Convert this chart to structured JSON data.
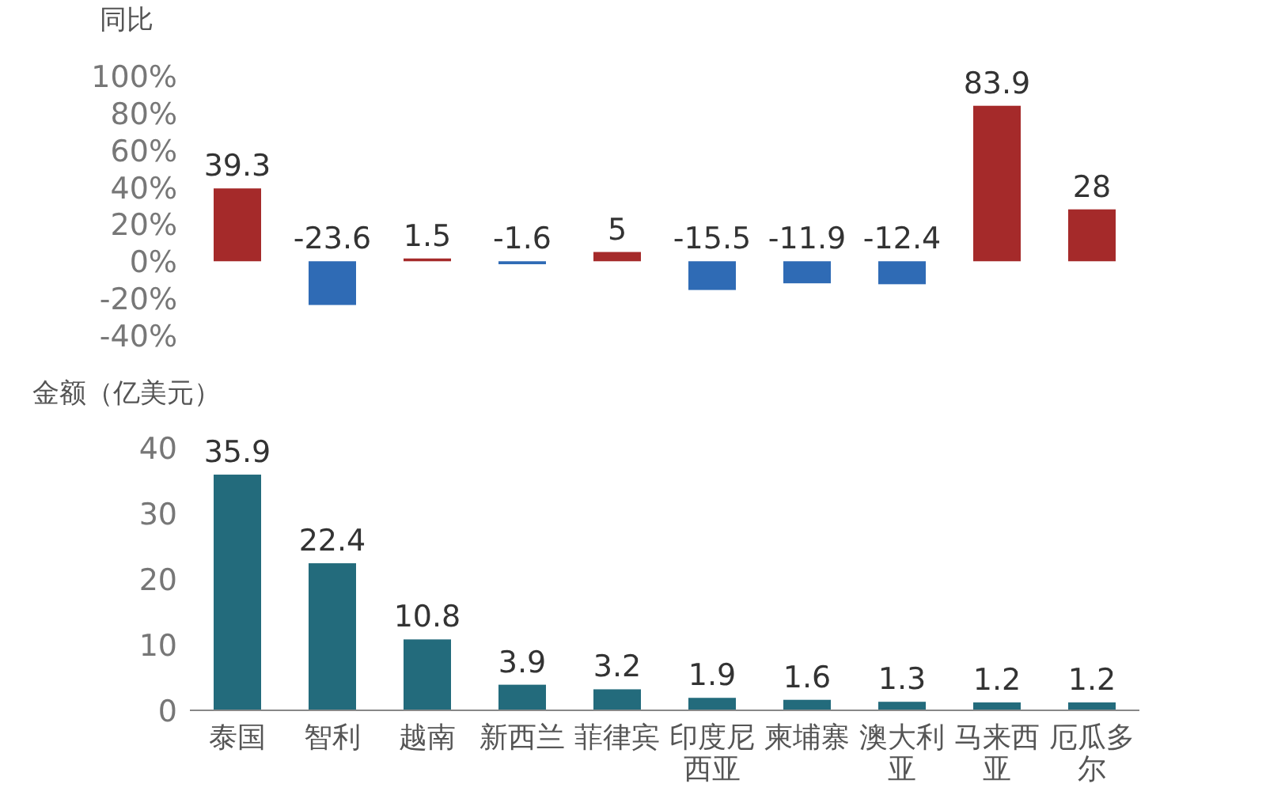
{
  "chart_data": [
    {
      "type": "bar",
      "ylabel": "同比",
      "categories": [
        "泰国",
        "智利",
        "越南",
        "新西兰",
        "菲律宾",
        "印度尼西亚",
        "柬埔寨",
        "澳大利亚",
        "马来西亚",
        "厄瓜多尔"
      ],
      "values": [
        39.3,
        -23.6,
        1.5,
        -1.6,
        5,
        -15.5,
        -11.9,
        -12.4,
        83.9,
        28
      ],
      "colors": [
        "#a52a2a",
        "#2f6bb5",
        "#a52a2a",
        "#2f6bb5",
        "#a52a2a",
        "#2f6bb5",
        "#2f6bb5",
        "#2f6bb5",
        "#a52a2a",
        "#a52a2a"
      ],
      "ylim": [
        -40,
        100
      ],
      "yticks": [
        {
          "value": -40,
          "label": "-40%"
        },
        {
          "value": -20,
          "label": "-20%"
        },
        {
          "value": 0,
          "label": "0%"
        },
        {
          "value": 20,
          "label": "20%"
        },
        {
          "value": 40,
          "label": "40%"
        },
        {
          "value": 60,
          "label": "60%"
        },
        {
          "value": 80,
          "label": "80%"
        },
        {
          "value": 100,
          "label": "100%"
        }
      ],
      "data_labels": true,
      "tick_labels": "y"
    },
    {
      "type": "bar",
      "ylabel": "金额（亿美元）",
      "categories": [
        "泰国",
        "智利",
        "越南",
        "新西兰",
        "菲律宾",
        "印度尼西亚",
        "柬埔寨",
        "澳大利亚",
        "马来西亚",
        "厄瓜多尔"
      ],
      "values": [
        35.9,
        22.4,
        10.8,
        3.9,
        3.2,
        1.9,
        1.6,
        1.3,
        1.2,
        1.2
      ],
      "color": "#236b7c",
      "ylim": [
        0,
        40
      ],
      "yticks": [
        0,
        10,
        20,
        30,
        40
      ],
      "data_labels": true
    }
  ]
}
